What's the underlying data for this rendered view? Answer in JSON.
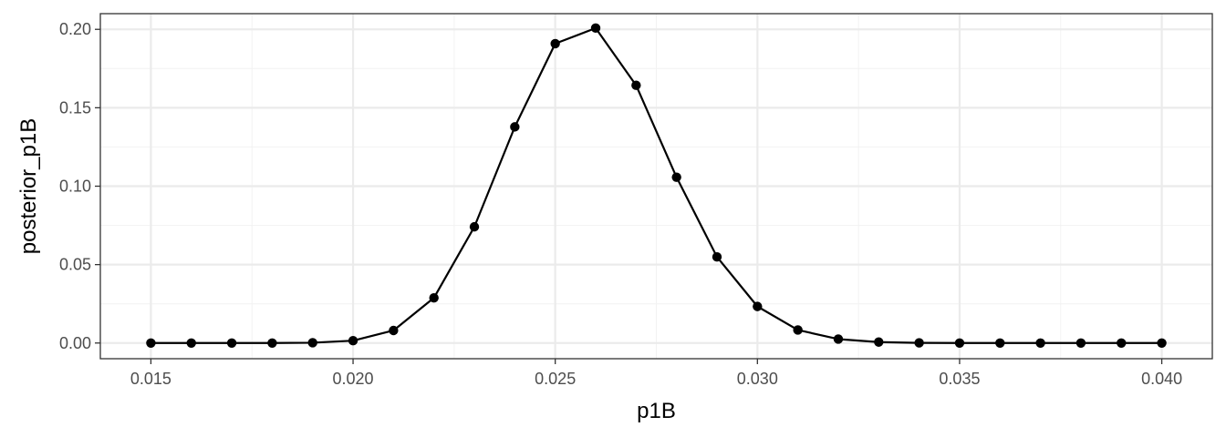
{
  "chart_data": {
    "type": "line",
    "title": "",
    "xlabel": "p1B",
    "ylabel": "posterior_p1B",
    "xlim": [
      0.01375,
      0.04125
    ],
    "ylim": [
      -0.01,
      0.21
    ],
    "x_ticks": [
      0.015,
      0.02,
      0.025,
      0.03,
      0.035,
      0.04
    ],
    "x_tick_labels": [
      "0.015",
      "0.020",
      "0.025",
      "0.030",
      "0.035",
      "0.040"
    ],
    "y_ticks": [
      0.0,
      0.05,
      0.1,
      0.15,
      0.2
    ],
    "y_tick_labels": [
      "0.00",
      "0.05",
      "0.10",
      "0.15",
      "0.20"
    ],
    "grid": true,
    "theme": "bw",
    "series": [
      {
        "x": [
          0.015,
          0.016,
          0.017,
          0.018,
          0.019,
          0.02,
          0.021,
          0.022,
          0.023,
          0.024,
          0.025,
          0.026,
          0.027,
          0.028,
          0.029,
          0.03,
          0.031,
          0.032,
          0.033,
          0.034,
          0.035,
          0.036,
          0.037,
          0.038,
          0.039,
          0.04
        ],
        "values": [
          0.0,
          0.0,
          0.0,
          0.0,
          0.0002,
          0.0015,
          0.008,
          0.0288,
          0.0741,
          0.1378,
          0.1909,
          0.2008,
          0.1643,
          0.1057,
          0.0549,
          0.0233,
          0.0083,
          0.0025,
          0.0006,
          0.0001,
          0.0,
          0.0,
          0.0,
          0.0,
          0.0,
          0.0
        ],
        "color": "#000000"
      }
    ]
  }
}
